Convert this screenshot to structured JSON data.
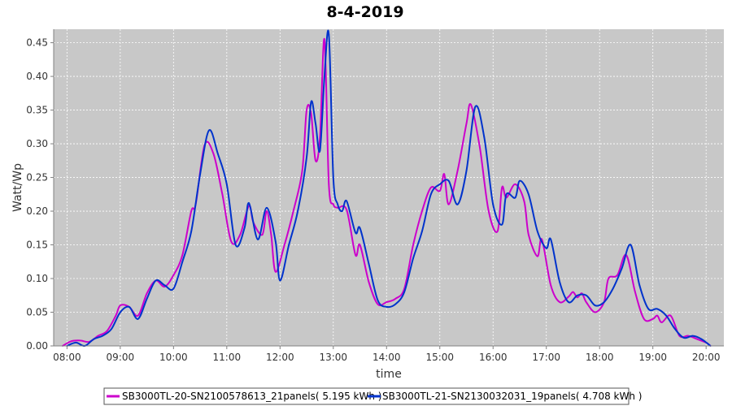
{
  "chart_data": {
    "type": "line",
    "title": "8-4-2019",
    "xlabel": "time",
    "ylabel": "Watt/Wp",
    "xlim": [
      "07:45",
      "20:20"
    ],
    "ylim": [
      0,
      0.47
    ],
    "x_ticks": [
      "08:00",
      "09:00",
      "10:00",
      "11:00",
      "12:00",
      "13:00",
      "14:00",
      "15:00",
      "16:00",
      "17:00",
      "18:00",
      "19:00",
      "20:00"
    ],
    "y_ticks": [
      "0.00",
      "0.05",
      "0.10",
      "0.15",
      "0.20",
      "0.25",
      "0.30",
      "0.35",
      "0.40",
      "0.45"
    ],
    "grid": true,
    "legend_position": "bottom",
    "background": "#c8c8c8",
    "series": [
      {
        "name": "SB3000TL-20-SN2100578613_21panels( 5.195 kWh )",
        "color": "#cc00cc",
        "points": [
          [
            "07:55",
            0.0
          ],
          [
            "08:05",
            0.007
          ],
          [
            "08:15",
            0.008
          ],
          [
            "08:25",
            0.006
          ],
          [
            "08:35",
            0.015
          ],
          [
            "08:45",
            0.022
          ],
          [
            "08:55",
            0.045
          ],
          [
            "09:00",
            0.06
          ],
          [
            "09:10",
            0.058
          ],
          [
            "09:20",
            0.045
          ],
          [
            "09:30",
            0.078
          ],
          [
            "09:40",
            0.097
          ],
          [
            "09:50",
            0.088
          ],
          [
            "10:00",
            0.105
          ],
          [
            "10:10",
            0.135
          ],
          [
            "10:20",
            0.2
          ],
          [
            "10:25",
            0.21
          ],
          [
            "10:35",
            0.298
          ],
          [
            "10:45",
            0.285
          ],
          [
            "10:55",
            0.225
          ],
          [
            "11:05",
            0.155
          ],
          [
            "11:15",
            0.165
          ],
          [
            "11:25",
            0.208
          ],
          [
            "11:30",
            0.183
          ],
          [
            "11:40",
            0.165
          ],
          [
            "11:45",
            0.2
          ],
          [
            "11:50",
            0.165
          ],
          [
            "11:55",
            0.11
          ],
          [
            "12:05",
            0.15
          ],
          [
            "12:15",
            0.2
          ],
          [
            "12:25",
            0.26
          ],
          [
            "12:30",
            0.35
          ],
          [
            "12:35",
            0.345
          ],
          [
            "12:40",
            0.275
          ],
          [
            "12:45",
            0.31
          ],
          [
            "12:50",
            0.455
          ],
          [
            "12:55",
            0.24
          ],
          [
            "13:00",
            0.21
          ],
          [
            "13:05",
            0.205
          ],
          [
            "13:15",
            0.202
          ],
          [
            "13:25",
            0.135
          ],
          [
            "13:30",
            0.15
          ],
          [
            "13:40",
            0.095
          ],
          [
            "13:50",
            0.062
          ],
          [
            "14:00",
            0.065
          ],
          [
            "14:10",
            0.07
          ],
          [
            "14:20",
            0.085
          ],
          [
            "14:30",
            0.15
          ],
          [
            "14:40",
            0.2
          ],
          [
            "14:50",
            0.235
          ],
          [
            "15:00",
            0.23
          ],
          [
            "15:05",
            0.255
          ],
          [
            "15:10",
            0.21
          ],
          [
            "15:20",
            0.26
          ],
          [
            "15:30",
            0.33
          ],
          [
            "15:35",
            0.358
          ],
          [
            "15:45",
            0.295
          ],
          [
            "15:55",
            0.2
          ],
          [
            "16:05",
            0.17
          ],
          [
            "16:10",
            0.235
          ],
          [
            "16:15",
            0.22
          ],
          [
            "16:25",
            0.24
          ],
          [
            "16:35",
            0.215
          ],
          [
            "16:40",
            0.165
          ],
          [
            "16:50",
            0.133
          ],
          [
            "16:55",
            0.158
          ],
          [
            "17:05",
            0.09
          ],
          [
            "17:15",
            0.065
          ],
          [
            "17:25",
            0.073
          ],
          [
            "17:30",
            0.08
          ],
          [
            "17:35",
            0.072
          ],
          [
            "17:40",
            0.078
          ],
          [
            "17:45",
            0.065
          ],
          [
            "17:55",
            0.05
          ],
          [
            "18:05",
            0.065
          ],
          [
            "18:10",
            0.1
          ],
          [
            "18:20",
            0.105
          ],
          [
            "18:30",
            0.135
          ],
          [
            "18:40",
            0.08
          ],
          [
            "18:50",
            0.04
          ],
          [
            "19:00",
            0.04
          ],
          [
            "19:05",
            0.045
          ],
          [
            "19:10",
            0.035
          ],
          [
            "19:20",
            0.045
          ],
          [
            "19:30",
            0.015
          ],
          [
            "19:40",
            0.015
          ],
          [
            "19:50",
            0.01
          ],
          [
            "20:00",
            0.005
          ],
          [
            "20:05",
            0.0
          ]
        ]
      },
      {
        "name": "SB3000TL-21-SN2130032031_19panels( 4.708 kWh )",
        "color": "#0033cc",
        "points": [
          [
            "08:00",
            0.0
          ],
          [
            "08:10",
            0.005
          ],
          [
            "08:20",
            0.0
          ],
          [
            "08:30",
            0.01
          ],
          [
            "08:40",
            0.015
          ],
          [
            "08:50",
            0.025
          ],
          [
            "09:00",
            0.05
          ],
          [
            "09:10",
            0.058
          ],
          [
            "09:20",
            0.04
          ],
          [
            "09:30",
            0.07
          ],
          [
            "09:40",
            0.097
          ],
          [
            "09:50",
            0.09
          ],
          [
            "10:00",
            0.085
          ],
          [
            "10:10",
            0.125
          ],
          [
            "10:20",
            0.17
          ],
          [
            "10:30",
            0.255
          ],
          [
            "10:40",
            0.32
          ],
          [
            "10:50",
            0.285
          ],
          [
            "11:00",
            0.24
          ],
          [
            "11:10",
            0.15
          ],
          [
            "11:20",
            0.175
          ],
          [
            "11:25",
            0.212
          ],
          [
            "11:35",
            0.158
          ],
          [
            "11:45",
            0.205
          ],
          [
            "11:55",
            0.155
          ],
          [
            "12:00",
            0.097
          ],
          [
            "12:10",
            0.15
          ],
          [
            "12:20",
            0.2
          ],
          [
            "12:30",
            0.28
          ],
          [
            "12:35",
            0.362
          ],
          [
            "12:40",
            0.33
          ],
          [
            "12:45",
            0.29
          ],
          [
            "12:50",
            0.4
          ],
          [
            "12:55",
            0.462
          ],
          [
            "13:00",
            0.25
          ],
          [
            "13:05",
            0.21
          ],
          [
            "13:10",
            0.2
          ],
          [
            "13:15",
            0.215
          ],
          [
            "13:25",
            0.168
          ],
          [
            "13:30",
            0.175
          ],
          [
            "13:40",
            0.122
          ],
          [
            "13:50",
            0.068
          ],
          [
            "14:00",
            0.058
          ],
          [
            "14:10",
            0.062
          ],
          [
            "14:20",
            0.08
          ],
          [
            "14:30",
            0.13
          ],
          [
            "14:40",
            0.17
          ],
          [
            "14:50",
            0.225
          ],
          [
            "15:00",
            0.24
          ],
          [
            "15:10",
            0.245
          ],
          [
            "15:20",
            0.21
          ],
          [
            "15:30",
            0.26
          ],
          [
            "15:40",
            0.355
          ],
          [
            "15:50",
            0.31
          ],
          [
            "16:00",
            0.21
          ],
          [
            "16:10",
            0.18
          ],
          [
            "16:15",
            0.225
          ],
          [
            "16:25",
            0.22
          ],
          [
            "16:30",
            0.245
          ],
          [
            "16:40",
            0.225
          ],
          [
            "16:50",
            0.17
          ],
          [
            "17:00",
            0.145
          ],
          [
            "17:05",
            0.158
          ],
          [
            "17:15",
            0.095
          ],
          [
            "17:25",
            0.065
          ],
          [
            "17:35",
            0.075
          ],
          [
            "17:45",
            0.075
          ],
          [
            "17:55",
            0.06
          ],
          [
            "18:05",
            0.065
          ],
          [
            "18:15",
            0.085
          ],
          [
            "18:25",
            0.115
          ],
          [
            "18:35",
            0.15
          ],
          [
            "18:45",
            0.09
          ],
          [
            "18:55",
            0.055
          ],
          [
            "19:05",
            0.055
          ],
          [
            "19:15",
            0.045
          ],
          [
            "19:25",
            0.025
          ],
          [
            "19:35",
            0.012
          ],
          [
            "19:45",
            0.015
          ],
          [
            "19:55",
            0.01
          ],
          [
            "20:05",
            0.0
          ]
        ]
      }
    ]
  }
}
